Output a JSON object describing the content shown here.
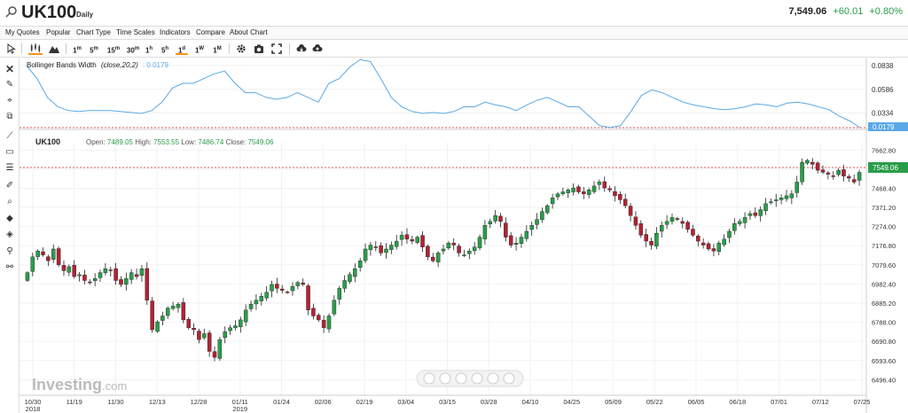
{
  "header": {
    "symbol": "UK100",
    "interval": "Daily",
    "last_price": "7,549.06",
    "change_abs": "+60.01",
    "change_pct": "+0.80%"
  },
  "menu": [
    "My Quotes",
    "Popular",
    "Chart Type",
    "Time Scales",
    "Indicators",
    "Compare",
    "About Chart"
  ],
  "toolbar": {
    "timeframes": [
      "1m",
      "5m",
      "15m",
      "30m",
      "1h",
      "5h",
      "1d",
      "1W",
      "1M"
    ],
    "active_timeframe": "1d"
  },
  "left_tools": [
    "cursor-icon",
    "close-icon",
    "pencil-icon",
    "target-icon",
    "copy-icon",
    "line-icon",
    "rectangle-icon",
    "fib-icon",
    "brush-icon",
    "magnet-icon",
    "fill-icon",
    "fill-alt-icon",
    "node-icon",
    "node-alt-icon"
  ],
  "indicator": {
    "label": "Bollinger Bands Width",
    "params": "(close,20,2)",
    "value": ": 0.0179",
    "axis_ticks": [
      "0.0838",
      "0.0586",
      "0.0334",
      "0.0179"
    ],
    "current_tag": "0.0179"
  },
  "main_panel": {
    "symbol": "UK100",
    "open_label": "Open:",
    "open": "7489.05",
    "high_label": "High:",
    "high": "7553.55",
    "low_label": "Low:",
    "low": "7486.74",
    "close_label": "Close:",
    "close": "7549.06",
    "price_tag": "7549.06"
  },
  "watermark": {
    "brand": "Investing",
    "suffix": ".com"
  },
  "colors": {
    "up": "#2a9d4a",
    "down": "#b22234",
    "bbw_line": "#5aa9e6",
    "dotted_ref": "#e05555",
    "accent": "#f7931e",
    "tag": "#2a9d4a"
  },
  "chart_data": {
    "type": "candlestick",
    "y_ticks": [
      "7662.80",
      "7565.60",
      "7468.40",
      "7371.20",
      "7274.00",
      "7176.80",
      "7079.60",
      "6982.40",
      "6885.20",
      "6788.00",
      "6690.80",
      "6593.60",
      "6496.40"
    ],
    "x_ticks": [
      {
        "label": "10/30",
        "sub": "2018"
      },
      {
        "label": "11/19",
        "sub": ""
      },
      {
        "label": "11/30",
        "sub": ""
      },
      {
        "label": "12/13",
        "sub": ""
      },
      {
        "label": "12/28",
        "sub": ""
      },
      {
        "label": "01/11",
        "sub": "2019"
      },
      {
        "label": "01/24",
        "sub": ""
      },
      {
        "label": "02/06",
        "sub": ""
      },
      {
        "label": "02/19",
        "sub": ""
      },
      {
        "label": "03/04",
        "sub": ""
      },
      {
        "label": "03/15",
        "sub": ""
      },
      {
        "label": "03/28",
        "sub": ""
      },
      {
        "label": "04/10",
        "sub": ""
      },
      {
        "label": "04/25",
        "sub": ""
      },
      {
        "label": "05/09",
        "sub": ""
      },
      {
        "label": "05/22",
        "sub": ""
      },
      {
        "label": "06/05",
        "sub": ""
      },
      {
        "label": "06/18",
        "sub": ""
      },
      {
        "label": "07/01",
        "sub": ""
      },
      {
        "label": "07/12",
        "sub": ""
      },
      {
        "label": "07/25",
        "sub": ""
      }
    ],
    "ylim": [
      6480,
      7700
    ],
    "close_series": [
      7040,
      7120,
      7150,
      7130,
      7100,
      7160,
      7080,
      7050,
      7070,
      7020,
      7030,
      7000,
      6990,
      7010,
      7040,
      7060,
      7050,
      7000,
      6980,
      7010,
      7040,
      7020,
      7060,
      6900,
      6750,
      6790,
      6820,
      6860,
      6870,
      6880,
      6800,
      6760,
      6750,
      6700,
      6730,
      6640,
      6610,
      6700,
      6740,
      6760,
      6770,
      6800,
      6850,
      6880,
      6900,
      6920,
      6940,
      6980,
      6960,
      6950,
      6940,
      6970,
      6990,
      6980,
      6850,
      6820,
      6800,
      6760,
      6820,
      6900,
      6960,
      7000,
      7030,
      7060,
      7100,
      7160,
      7180,
      7170,
      7140,
      7160,
      7180,
      7200,
      7230,
      7210,
      7200,
      7220,
      7170,
      7120,
      7100,
      7140,
      7160,
      7190,
      7180,
      7140,
      7130,
      7150,
      7170,
      7220,
      7280,
      7300,
      7330,
      7300,
      7220,
      7180,
      7190,
      7220,
      7250,
      7280,
      7310,
      7350,
      7380,
      7420,
      7440,
      7450,
      7460,
      7470,
      7450,
      7440,
      7460,
      7480,
      7500,
      7470,
      7460,
      7430,
      7410,
      7380,
      7330,
      7280,
      7230,
      7200,
      7180,
      7240,
      7280,
      7300,
      7320,
      7310,
      7290,
      7260,
      7230,
      7200,
      7180,
      7160,
      7150,
      7190,
      7210,
      7250,
      7290,
      7300,
      7320,
      7340,
      7330,
      7360,
      7390,
      7400,
      7410,
      7420,
      7430,
      7440,
      7500,
      7600,
      7610,
      7590,
      7560,
      7550,
      7540,
      7530,
      7560,
      7530,
      7520,
      7500,
      7549
    ],
    "bbw_series": [
      0.0838,
      0.07,
      0.05,
      0.04,
      0.036,
      0.035,
      0.036,
      0.036,
      0.036,
      0.035,
      0.034,
      0.033,
      0.036,
      0.045,
      0.06,
      0.065,
      0.065,
      0.07,
      0.075,
      0.078,
      0.065,
      0.055,
      0.055,
      0.05,
      0.048,
      0.05,
      0.055,
      0.05,
      0.045,
      0.065,
      0.07,
      0.082,
      0.09,
      0.088,
      0.07,
      0.05,
      0.04,
      0.035,
      0.033,
      0.034,
      0.033,
      0.035,
      0.04,
      0.04,
      0.045,
      0.042,
      0.04,
      0.036,
      0.042,
      0.047,
      0.05,
      0.045,
      0.04,
      0.04,
      0.03,
      0.02,
      0.018,
      0.02,
      0.035,
      0.052,
      0.058,
      0.055,
      0.05,
      0.045,
      0.042,
      0.04,
      0.038,
      0.037,
      0.038,
      0.04,
      0.043,
      0.042,
      0.04,
      0.044,
      0.045,
      0.043,
      0.04,
      0.037,
      0.03,
      0.025,
      0.0179
    ]
  }
}
